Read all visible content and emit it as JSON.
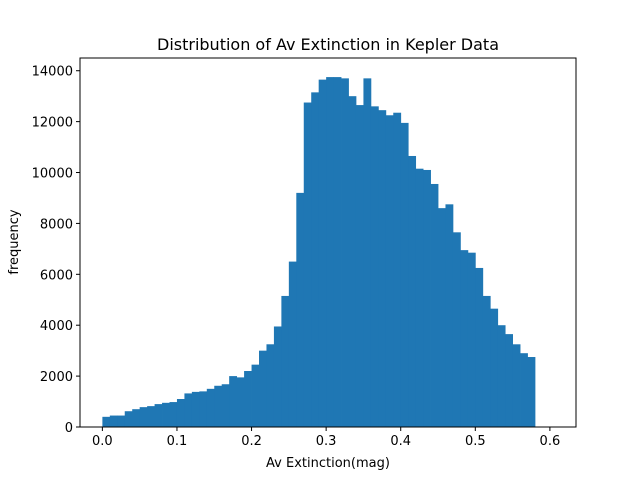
{
  "chart_data": {
    "type": "bar",
    "title": "Distribution of Av Extinction in Kepler Data",
    "xlabel": "Av Extinction(mag)",
    "ylabel": "frequency",
    "xlim": [
      -0.03,
      0.635
    ],
    "ylim": [
      0,
      14500
    ],
    "xticks": [
      0.0,
      0.1,
      0.2,
      0.3,
      0.4,
      0.5,
      0.6
    ],
    "xtick_labels": [
      "0.0",
      "0.1",
      "0.2",
      "0.3",
      "0.4",
      "0.5",
      "0.6"
    ],
    "yticks": [
      0,
      2000,
      4000,
      6000,
      8000,
      10000,
      12000,
      14000
    ],
    "ytick_labels": [
      "0",
      "2000",
      "4000",
      "6000",
      "8000",
      "10000",
      "12000",
      "14000"
    ],
    "grid": false,
    "color": "#1f77b4",
    "bin_start": 0.0,
    "bin_width": 0.01,
    "counts": [
      400,
      450,
      450,
      620,
      700,
      780,
      820,
      900,
      950,
      980,
      1100,
      1320,
      1380,
      1400,
      1500,
      1620,
      1680,
      2000,
      1950,
      2200,
      2450,
      3000,
      3250,
      3950,
      5150,
      6500,
      9200,
      12750,
      13150,
      13650,
      13750,
      13750,
      13700,
      13000,
      12650,
      13700,
      12600,
      12450,
      12250,
      12350,
      11950,
      10650,
      10150,
      10100,
      9550,
      8600,
      8750,
      7650,
      6950,
      6850,
      6250,
      5150,
      4650,
      4000,
      3650,
      3250,
      2900,
      2750
    ]
  }
}
